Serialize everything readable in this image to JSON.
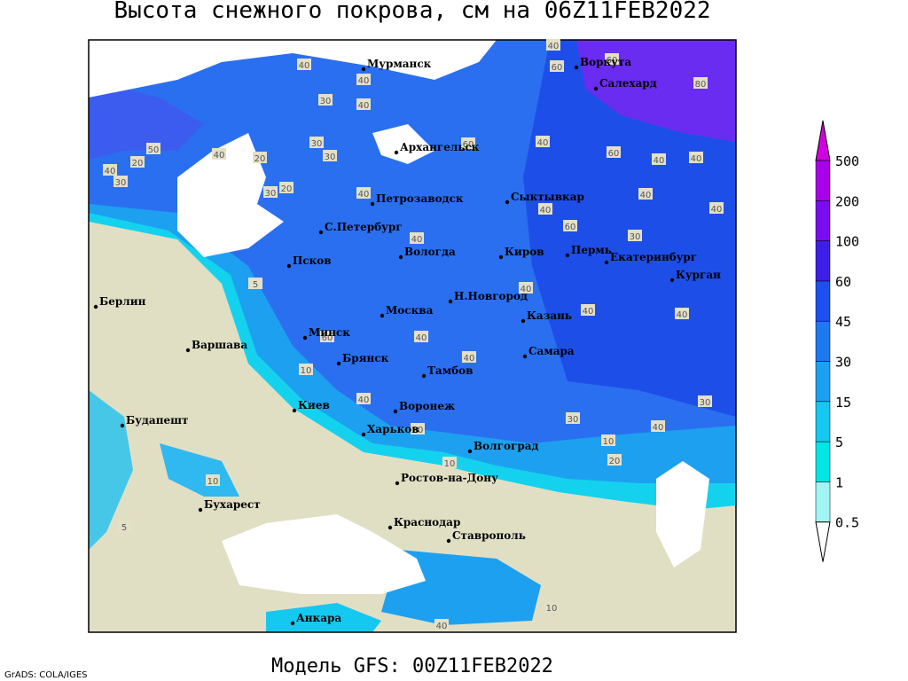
{
  "header": {
    "title": "Высота снежного покрова, см на 06Z11FEB2022"
  },
  "footer": {
    "model": "Модель GFS: 00Z11FEB2022",
    "credit": "GrADS: COLA/IGES"
  },
  "cities": [
    "Мурманск",
    "Воркута",
    "Салехард",
    "Архангельск",
    "Сыктывкар",
    "Петрозаводск",
    "С.Петербург",
    "Вологда",
    "Киров",
    "Пермь",
    "Екатеринбург",
    "Курган",
    "Псков",
    "Берлин",
    "Н.Новгород",
    "Москва",
    "Казань",
    "Варшава",
    "Минск",
    "Самара",
    "Брянск",
    "Тамбов",
    "Киев",
    "Воронеж",
    "Будапешт",
    "Харьков",
    "Волгоград",
    "Ростов-на-Дону",
    "Бухарест",
    "Краснодар",
    "Ставрополь",
    "Анкара"
  ],
  "contour_labels": [
    "40",
    "40",
    "60",
    "60",
    "80",
    "40",
    "30",
    "40",
    "50",
    "40",
    "20",
    "40",
    "30",
    "30",
    "30",
    "20",
    "30",
    "20",
    "60",
    "40",
    "60",
    "40",
    "40",
    "40",
    "40",
    "40",
    "40",
    "40",
    "60",
    "30",
    "40",
    "40",
    "40",
    "60",
    "40",
    "40",
    "30",
    "40",
    "30",
    "10",
    "20",
    "40",
    "30",
    "10",
    "10",
    "5",
    "10",
    "40",
    "10",
    "5"
  ],
  "legend": {
    "levels": [
      0.5,
      1,
      5,
      15,
      30,
      45,
      60,
      100,
      200,
      500
    ],
    "colors": [
      "#ffffff",
      "#a0f4f4",
      "#00e6e6",
      "#14c8f0",
      "#1ea0f0",
      "#1e78f0",
      "#1e50f0",
      "#3c1ee8",
      "#7a0cf0",
      "#a800e8",
      "#d000e0"
    ]
  }
}
